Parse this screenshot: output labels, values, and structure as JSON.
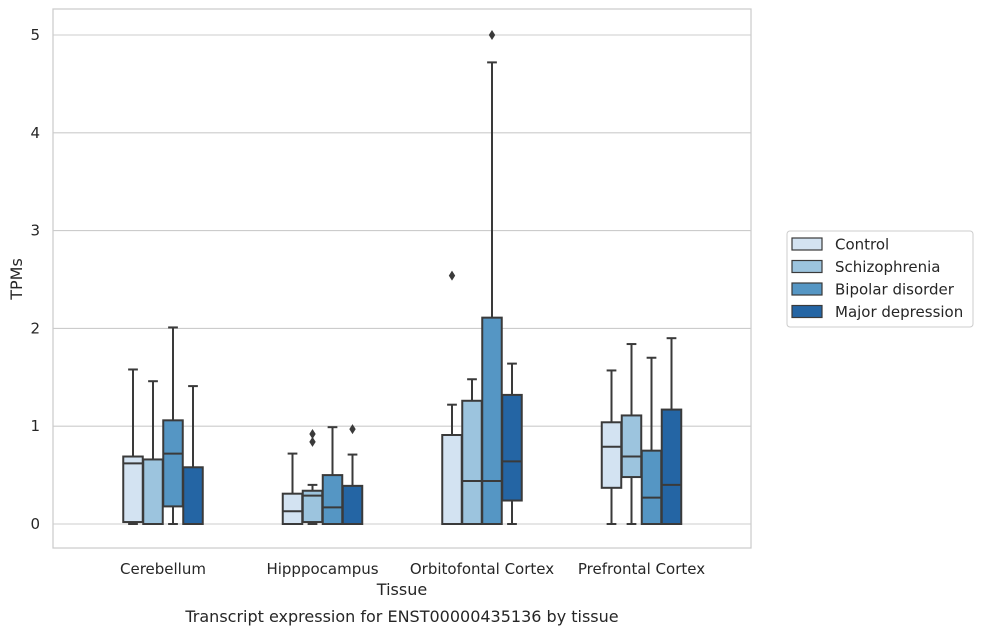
{
  "chart_data": {
    "type": "box",
    "caption": "Transcript expression for ENST00000435136 by tissue",
    "xlabel": "Tissue",
    "ylabel": "TPMs",
    "ylim": [
      -0.25,
      5.27
    ],
    "yticks": [
      0,
      1,
      2,
      3,
      4,
      5
    ],
    "grid": "horizontal",
    "legend_position": "right",
    "categories": [
      "Cerebellum",
      "Hipppocampus",
      "Orbitofontal Cortex",
      "Prefrontal Cortex"
    ],
    "series": [
      {
        "name": "Control",
        "color": "#d3e3f2",
        "boxes": [
          {
            "whisker_low": 0.0,
            "q1": 0.02,
            "median": 0.62,
            "q3": 0.69,
            "whisker_high": 1.58,
            "outliers": []
          },
          {
            "whisker_low": 0.0,
            "q1": 0.0,
            "median": 0.13,
            "q3": 0.31,
            "whisker_high": 0.72,
            "outliers": []
          },
          {
            "whisker_low": 0.0,
            "q1": 0.0,
            "median": 0.0,
            "q3": 0.91,
            "whisker_high": 1.22,
            "outliers": [
              2.54
            ]
          },
          {
            "whisker_low": 0.0,
            "q1": 0.37,
            "median": 0.79,
            "q3": 1.04,
            "whisker_high": 1.57,
            "outliers": []
          }
        ]
      },
      {
        "name": "Schizophrenia",
        "color": "#9cc4de",
        "boxes": [
          {
            "whisker_low": 0.0,
            "q1": 0.0,
            "median": 0.0,
            "q3": 0.66,
            "whisker_high": 1.46,
            "outliers": []
          },
          {
            "whisker_low": 0.0,
            "q1": 0.02,
            "median": 0.29,
            "q3": 0.34,
            "whisker_high": 0.4,
            "outliers": [
              0.84,
              0.92
            ]
          },
          {
            "whisker_low": 0.0,
            "q1": 0.0,
            "median": 0.44,
            "q3": 1.26,
            "whisker_high": 1.48,
            "outliers": []
          },
          {
            "whisker_low": 0.0,
            "q1": 0.48,
            "median": 0.69,
            "q3": 1.11,
            "whisker_high": 1.84,
            "outliers": []
          }
        ]
      },
      {
        "name": "Bipolar disorder",
        "color": "#5596c4",
        "boxes": [
          {
            "whisker_low": 0.0,
            "q1": 0.18,
            "median": 0.72,
            "q3": 1.06,
            "whisker_high": 2.01,
            "outliers": []
          },
          {
            "whisker_low": 0.0,
            "q1": 0.0,
            "median": 0.17,
            "q3": 0.5,
            "whisker_high": 0.99,
            "outliers": []
          },
          {
            "whisker_low": 0.0,
            "q1": 0.0,
            "median": 0.44,
            "q3": 2.11,
            "whisker_high": 4.72,
            "outliers": [
              5.0
            ]
          },
          {
            "whisker_low": 0.0,
            "q1": 0.0,
            "median": 0.27,
            "q3": 0.75,
            "whisker_high": 1.7,
            "outliers": []
          }
        ]
      },
      {
        "name": "Major depression",
        "color": "#2465a4",
        "boxes": [
          {
            "whisker_low": 0.0,
            "q1": 0.0,
            "median": 0.0,
            "q3": 0.58,
            "whisker_high": 1.41,
            "outliers": []
          },
          {
            "whisker_low": 0.0,
            "q1": 0.0,
            "median": 0.0,
            "q3": 0.39,
            "whisker_high": 0.71,
            "outliers": [
              0.97
            ]
          },
          {
            "whisker_low": 0.0,
            "q1": 0.24,
            "median": 0.64,
            "q3": 1.32,
            "whisker_high": 1.64,
            "outliers": []
          },
          {
            "whisker_low": 0.0,
            "q1": 0.0,
            "median": 0.4,
            "q3": 1.17,
            "whisker_high": 1.9,
            "outliers": []
          }
        ]
      }
    ]
  }
}
